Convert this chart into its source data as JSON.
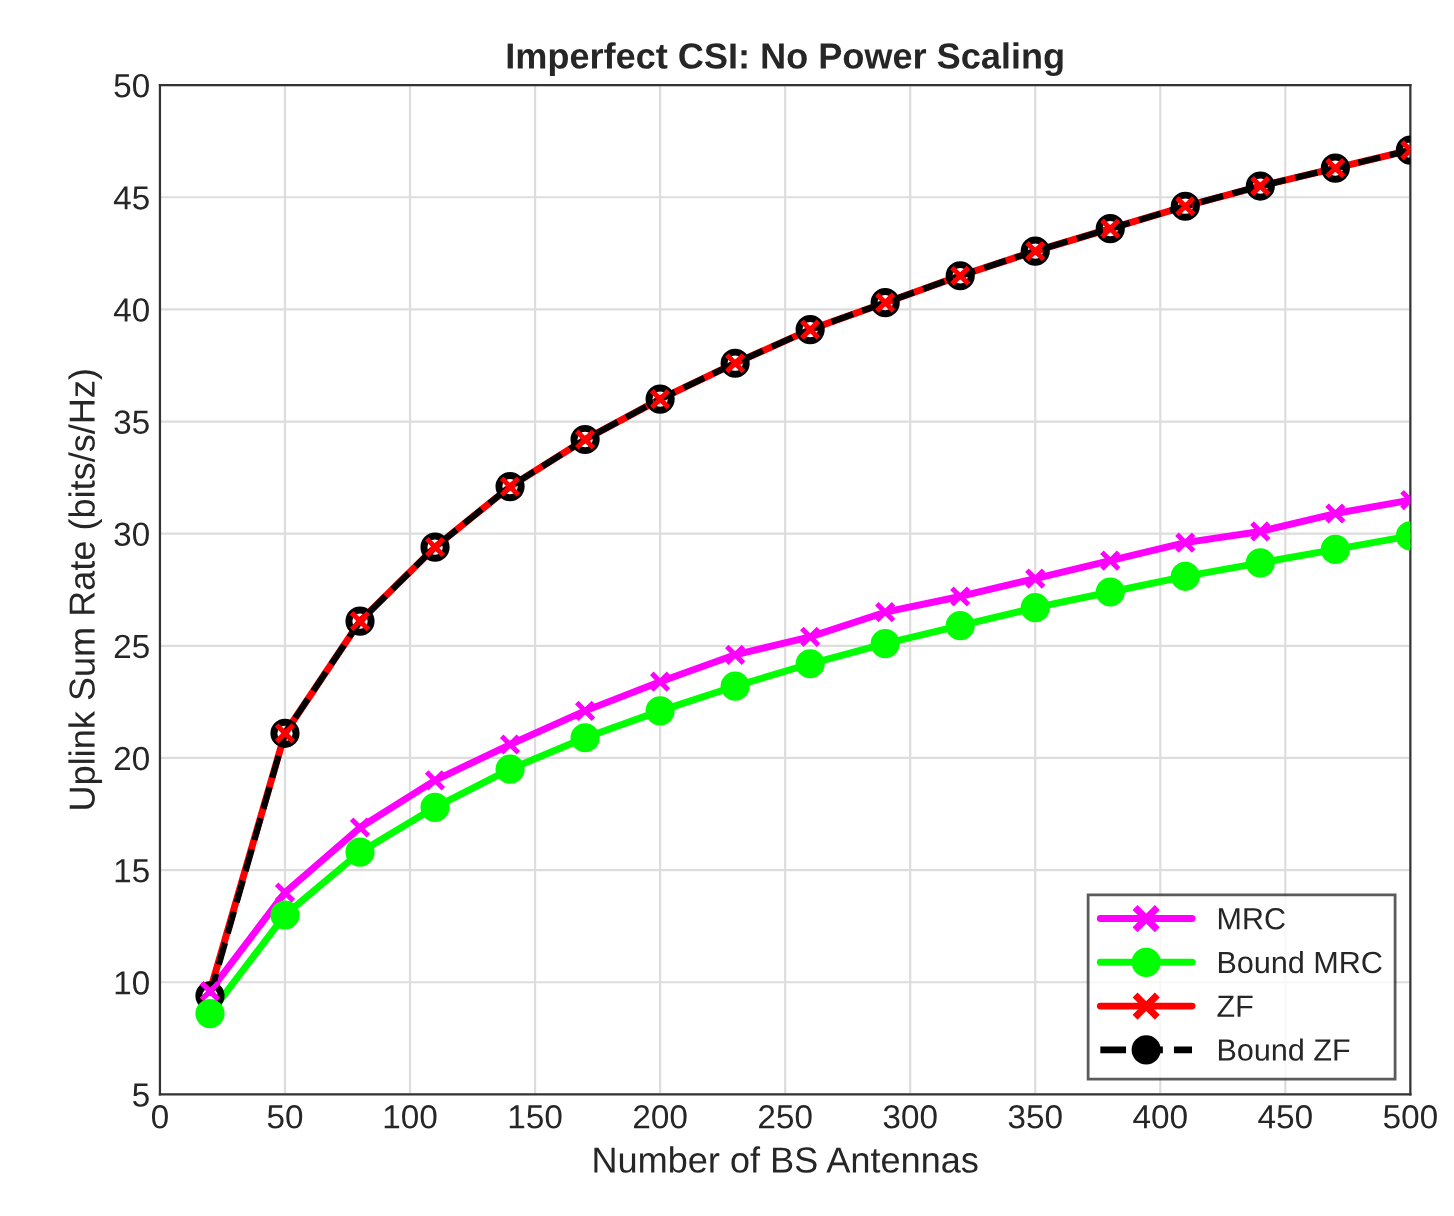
{
  "chart_data": {
    "type": "line",
    "title": "Imperfect CSI: No Power Scaling",
    "xlabel": "Number of BS Antennas",
    "ylabel": "Uplink Sum Rate (bits/s/Hz)",
    "x": [
      20,
      50,
      80,
      110,
      140,
      170,
      200,
      230,
      260,
      290,
      320,
      350,
      380,
      410,
      440,
      470,
      500
    ],
    "series": [
      {
        "name": "MRC",
        "color": "#ff00ff",
        "marker": "cross",
        "line_style": "solid",
        "values": [
          9.6,
          14.0,
          16.9,
          19.0,
          20.6,
          22.1,
          23.4,
          24.6,
          25.4,
          26.5,
          27.2,
          28.0,
          28.8,
          29.6,
          30.1,
          30.9,
          31.5
        ]
      },
      {
        "name": "Bound MRC",
        "color": "#00ff00",
        "marker": "circle",
        "line_style": "solid",
        "values": [
          8.6,
          13.0,
          15.8,
          17.8,
          19.5,
          20.9,
          22.1,
          23.2,
          24.2,
          25.1,
          25.9,
          26.7,
          27.4,
          28.1,
          28.7,
          29.3,
          29.9
        ]
      },
      {
        "name": "ZF",
        "color": "#ff0000",
        "marker": "cross",
        "line_style": "solid",
        "values": [
          9.6,
          21.1,
          26.1,
          29.4,
          32.1,
          34.2,
          36.0,
          37.6,
          39.1,
          40.3,
          41.5,
          42.6,
          43.6,
          44.6,
          45.5,
          46.3,
          47.1
        ]
      },
      {
        "name": "Bound ZF",
        "color": "#000000",
        "marker": "circle",
        "line_style": "dashed",
        "values": [
          9.4,
          21.1,
          26.1,
          29.4,
          32.1,
          34.2,
          36.0,
          37.6,
          39.1,
          40.3,
          41.5,
          42.6,
          43.6,
          44.6,
          45.5,
          46.3,
          47.1
        ]
      }
    ],
    "xlim": [
      0,
      500
    ],
    "xticks": [
      0,
      50,
      100,
      150,
      200,
      250,
      300,
      350,
      400,
      450,
      500
    ],
    "ylim": [
      5,
      50
    ],
    "yticks": [
      5,
      10,
      15,
      20,
      25,
      30,
      35,
      40,
      45,
      50
    ],
    "grid": true,
    "legend": "bottom right"
  }
}
